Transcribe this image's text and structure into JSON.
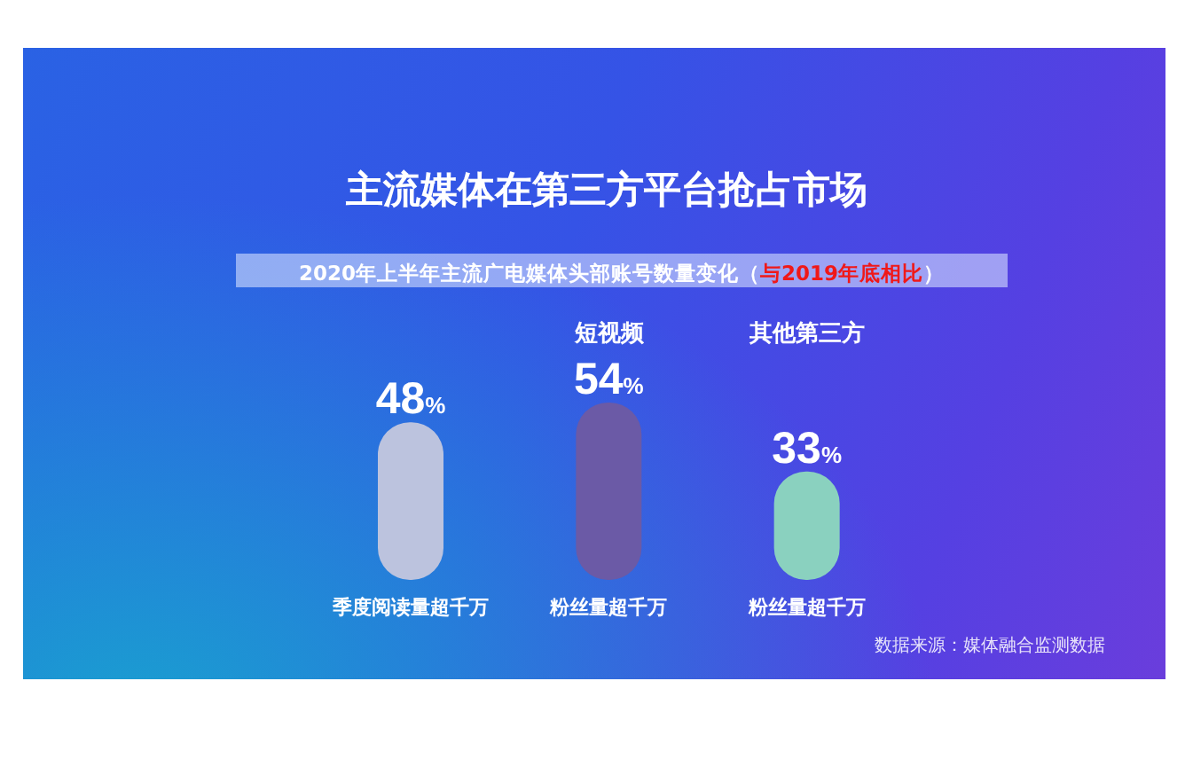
{
  "chart_data": {
    "type": "bar",
    "title": "主流媒体在第三方平台抢占市场",
    "subtitle": "2020年上半年主流广电媒体头部账号数量变化（与2019年底相比）",
    "categories": [
      null,
      "短视频",
      "其他第三方"
    ],
    "values": [
      48,
      54,
      33
    ],
    "colors": [
      "#bcc3de",
      "#6b5aa6",
      "#8ad1bf"
    ],
    "value_labels": [
      "48%",
      "54%",
      "33%"
    ],
    "annotations": [
      "季度阅读量超千万",
      "粉丝量超千万",
      "粉丝量超千万",
      "数据来源：媒体融合监测数据"
    ]
  }
}
